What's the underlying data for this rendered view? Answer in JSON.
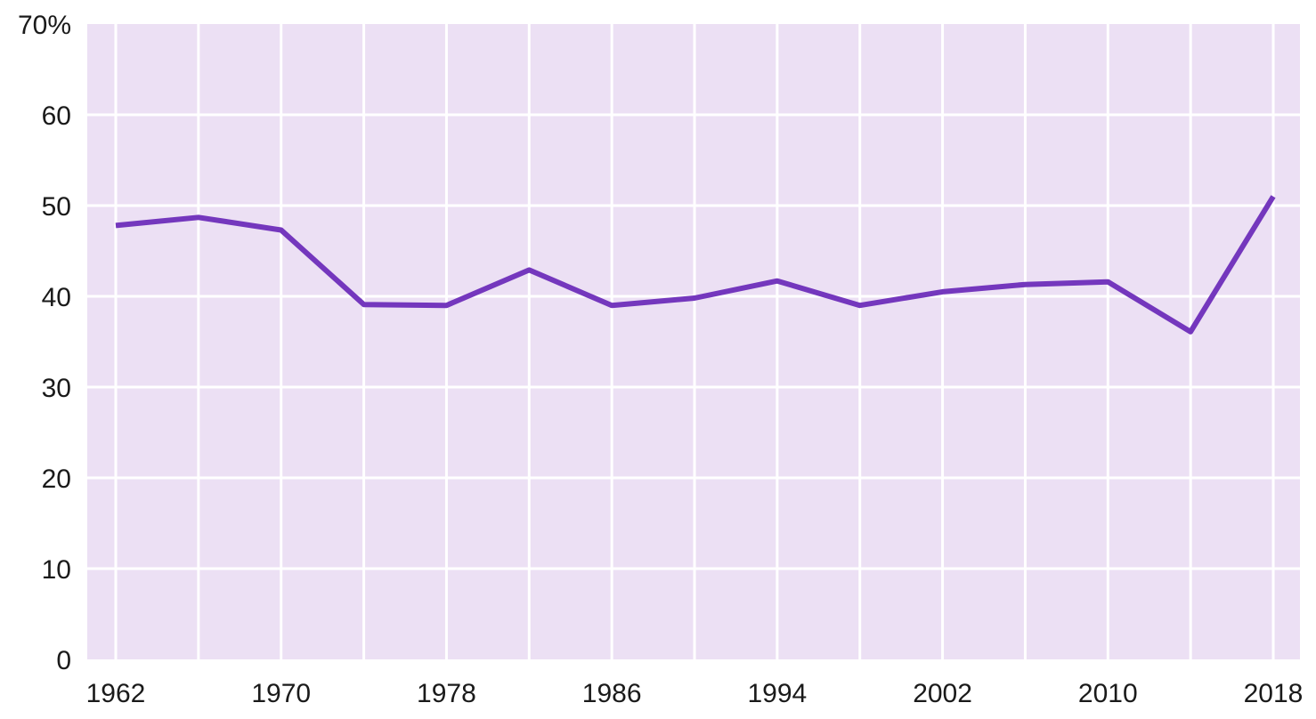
{
  "chart_data": {
    "type": "line",
    "x": [
      1962,
      1966,
      1970,
      1974,
      1978,
      1982,
      1986,
      1990,
      1994,
      1998,
      2002,
      2006,
      2010,
      2014,
      2018
    ],
    "series": [
      {
        "values": [
          47.8,
          48.7,
          47.3,
          39.1,
          39.0,
          42.9,
          39.0,
          39.8,
          41.7,
          39.0,
          40.5,
          41.3,
          41.6,
          36.1,
          51.0
        ]
      }
    ],
    "xlim": [
      1962,
      2018
    ],
    "ylim": [
      0,
      70
    ],
    "x_ticks": [
      1962,
      1970,
      1978,
      1986,
      1994,
      2002,
      2010,
      2018
    ],
    "x_tick_labels": [
      "1962",
      "1970",
      "1978",
      "1986",
      "1994",
      "2002",
      "2010",
      "2018"
    ],
    "y_ticks": [
      0,
      10,
      20,
      30,
      40,
      50,
      60,
      70
    ],
    "y_tick_labels": [
      "0",
      "10",
      "20",
      "30",
      "40",
      "50",
      "60",
      "70%"
    ],
    "grid": true,
    "colors": {
      "plot_background": "#ece0f4",
      "grid": "#ffffff",
      "line": "#7437bd"
    }
  }
}
